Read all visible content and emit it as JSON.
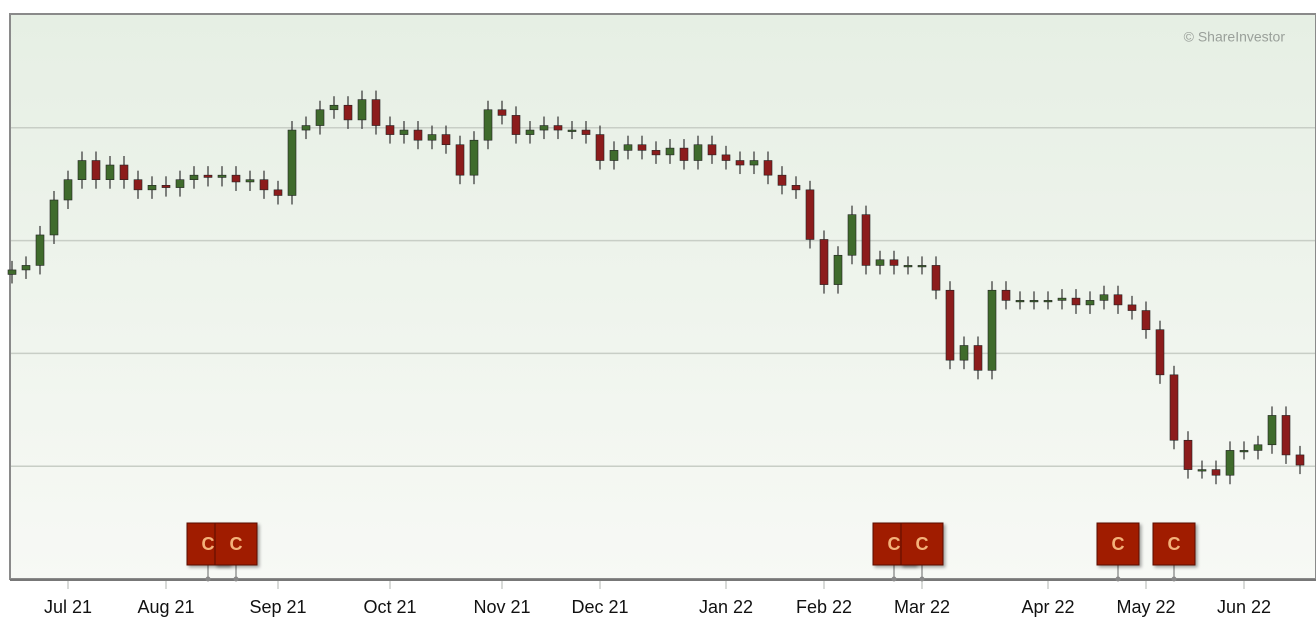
{
  "chart_data": {
    "type": "candlestick",
    "credit": "© ShareInvestor",
    "categories": [
      null,
      null,
      null,
      null,
      "Jul 21",
      null,
      null,
      null,
      null,
      null,
      null,
      "Aug 21",
      null,
      null,
      null,
      null,
      null,
      null,
      null,
      "Sep 21",
      null,
      null,
      null,
      null,
      null,
      null,
      null,
      "Oct 21",
      null,
      null,
      null,
      null,
      null,
      null,
      null,
      "Nov 21",
      null,
      null,
      null,
      null,
      null,
      null,
      "Dec 21",
      null,
      null,
      null,
      null,
      null,
      null,
      null,
      null,
      "Jan 22",
      null,
      null,
      null,
      null,
      null,
      null,
      "Feb 22",
      null,
      null,
      null,
      null,
      null,
      null,
      "Mar 22",
      null,
      null,
      null,
      null,
      null,
      null,
      null,
      null,
      "Apr 22",
      null,
      null,
      null,
      null,
      null,
      null,
      "May 22",
      null,
      null,
      null,
      null,
      null,
      null,
      "Jun 22",
      null,
      null,
      null,
      null
    ],
    "open": [
      2.7,
      2.74,
      2.78,
      3.05,
      3.36,
      3.54,
      3.71,
      3.54,
      3.67,
      3.54,
      3.45,
      3.49,
      3.47,
      3.54,
      3.58,
      3.56,
      3.58,
      3.52,
      3.54,
      3.45,
      3.4,
      3.98,
      4.02,
      4.16,
      4.2,
      4.07,
      4.25,
      4.02,
      3.94,
      3.98,
      3.89,
      3.94,
      3.85,
      3.58,
      3.89,
      4.16,
      4.11,
      3.94,
      3.98,
      4.02,
      3.98,
      3.98,
      3.94,
      3.71,
      3.8,
      3.85,
      3.8,
      3.76,
      3.82,
      3.71,
      3.85,
      3.76,
      3.71,
      3.67,
      3.71,
      3.58,
      3.49,
      3.45,
      3.01,
      2.61,
      2.87,
      3.23,
      2.78,
      2.83,
      2.78,
      2.78,
      2.78,
      2.56,
      1.94,
      2.07,
      1.85,
      2.56,
      2.47,
      2.47,
      2.47,
      2.47,
      2.49,
      2.43,
      2.47,
      2.52,
      2.43,
      2.38,
      2.21,
      1.81,
      1.23,
      0.97,
      0.97,
      0.92,
      1.14,
      1.14,
      1.19,
      1.45,
      1.1
    ],
    "high": [
      2.82,
      2.86,
      3.13,
      3.44,
      3.62,
      3.79,
      3.79,
      3.75,
      3.75,
      3.62,
      3.57,
      3.57,
      3.62,
      3.66,
      3.66,
      3.66,
      3.66,
      3.62,
      3.62,
      3.53,
      4.06,
      4.1,
      4.24,
      4.28,
      4.28,
      4.33,
      4.33,
      4.1,
      4.06,
      4.06,
      4.02,
      4.02,
      3.93,
      3.97,
      4.24,
      4.24,
      4.19,
      4.06,
      4.1,
      4.1,
      4.06,
      4.06,
      4.02,
      3.88,
      3.93,
      3.93,
      3.88,
      3.9,
      3.9,
      3.93,
      3.93,
      3.84,
      3.79,
      3.79,
      3.79,
      3.66,
      3.57,
      3.53,
      3.09,
      2.95,
      3.31,
      3.31,
      2.91,
      2.91,
      2.86,
      2.86,
      2.86,
      2.64,
      2.15,
      2.15,
      2.64,
      2.64,
      2.55,
      2.55,
      2.55,
      2.57,
      2.57,
      2.55,
      2.6,
      2.6,
      2.51,
      2.46,
      2.29,
      1.89,
      1.31,
      1.05,
      1.05,
      1.22,
      1.22,
      1.27,
      1.53,
      1.53,
      1.18
    ],
    "low": [
      2.62,
      2.66,
      2.7,
      2.97,
      3.28,
      3.46,
      3.46,
      3.46,
      3.46,
      3.37,
      3.37,
      3.39,
      3.39,
      3.46,
      3.48,
      3.48,
      3.44,
      3.44,
      3.37,
      3.32,
      3.32,
      3.9,
      3.94,
      4.08,
      3.99,
      3.99,
      3.94,
      3.86,
      3.86,
      3.81,
      3.81,
      3.77,
      3.5,
      3.5,
      3.81,
      4.03,
      3.86,
      3.86,
      3.9,
      3.9,
      3.9,
      3.86,
      3.63,
      3.63,
      3.72,
      3.72,
      3.68,
      3.68,
      3.63,
      3.63,
      3.68,
      3.63,
      3.59,
      3.59,
      3.5,
      3.41,
      3.37,
      2.93,
      2.53,
      2.53,
      2.79,
      2.7,
      2.7,
      2.7,
      2.7,
      2.7,
      2.48,
      1.86,
      1.86,
      1.77,
      1.77,
      2.39,
      2.39,
      2.39,
      2.39,
      2.39,
      2.35,
      2.35,
      2.39,
      2.35,
      2.3,
      2.13,
      1.73,
      1.15,
      0.89,
      0.89,
      0.84,
      0.84,
      1.06,
      1.06,
      1.11,
      1.02,
      0.93
    ],
    "close": [
      2.74,
      2.78,
      3.05,
      3.36,
      3.54,
      3.71,
      3.54,
      3.67,
      3.54,
      3.45,
      3.49,
      3.47,
      3.54,
      3.58,
      3.56,
      3.58,
      3.52,
      3.54,
      3.45,
      3.4,
      3.98,
      4.02,
      4.16,
      4.2,
      4.07,
      4.25,
      4.02,
      3.94,
      3.98,
      3.89,
      3.94,
      3.85,
      3.58,
      3.89,
      4.16,
      4.11,
      3.94,
      3.98,
      4.02,
      3.98,
      3.98,
      3.94,
      3.71,
      3.8,
      3.85,
      3.8,
      3.76,
      3.82,
      3.71,
      3.85,
      3.76,
      3.71,
      3.67,
      3.71,
      3.58,
      3.49,
      3.45,
      3.01,
      2.61,
      2.87,
      3.23,
      2.78,
      2.83,
      2.78,
      2.78,
      2.78,
      2.56,
      1.94,
      2.07,
      1.85,
      2.56,
      2.47,
      2.47,
      2.47,
      2.47,
      2.49,
      2.43,
      2.47,
      2.52,
      2.43,
      2.38,
      2.21,
      1.81,
      1.23,
      0.97,
      0.97,
      0.92,
      1.14,
      1.14,
      1.19,
      1.45,
      1.1,
      1.01
    ],
    "up_color": "#3f6b2c",
    "down_color": "#8c1c1c",
    "ylim": [
      0,
      5
    ],
    "grid_lines": [
      1,
      2,
      3,
      4
    ],
    "events": [
      {
        "category": 14,
        "label": "C"
      },
      {
        "category": 16,
        "label": "C"
      },
      {
        "category": 63,
        "label": "C"
      },
      {
        "category": 65,
        "label": "C"
      },
      {
        "category": 79,
        "label": "C"
      },
      {
        "category": 83,
        "label": "C"
      }
    ],
    "event_color": "#a01c00"
  }
}
